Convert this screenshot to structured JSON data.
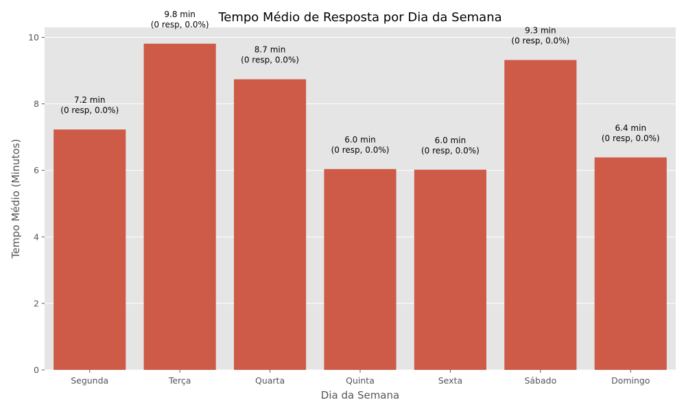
{
  "chart_data": {
    "type": "bar",
    "title": "Tempo Médio de Resposta por Dia da Semana",
    "xlabel": "Dia da Semana",
    "ylabel": "Tempo Médio (Minutos)",
    "categories": [
      "Segunda",
      "Terça",
      "Quarta",
      "Quinta",
      "Sexta",
      "Sábado",
      "Domingo"
    ],
    "values": [
      7.23,
      9.81,
      8.74,
      6.04,
      6.02,
      9.32,
      6.39
    ],
    "data_labels": [
      [
        "7.2 min",
        "(0 resp, 0.0%)"
      ],
      [
        "9.8 min",
        "(0 resp, 0.0%)"
      ],
      [
        "8.7 min",
        "(0 resp, 0.0%)"
      ],
      [
        "6.0 min",
        "(0 resp, 0.0%)"
      ],
      [
        "6.0 min",
        "(0 resp, 0.0%)"
      ],
      [
        "9.3 min",
        "(0 resp, 0.0%)"
      ],
      [
        "6.4 min",
        "(0 resp, 0.0%)"
      ]
    ],
    "ylim": [
      0,
      10.3
    ],
    "yticks": [
      "0",
      "2",
      "4",
      "6",
      "8",
      "10"
    ],
    "grid": true,
    "colors": {
      "bar": "#cd5b48",
      "plot_background": "#e5e5e5",
      "grid": "#ffffff"
    }
  }
}
